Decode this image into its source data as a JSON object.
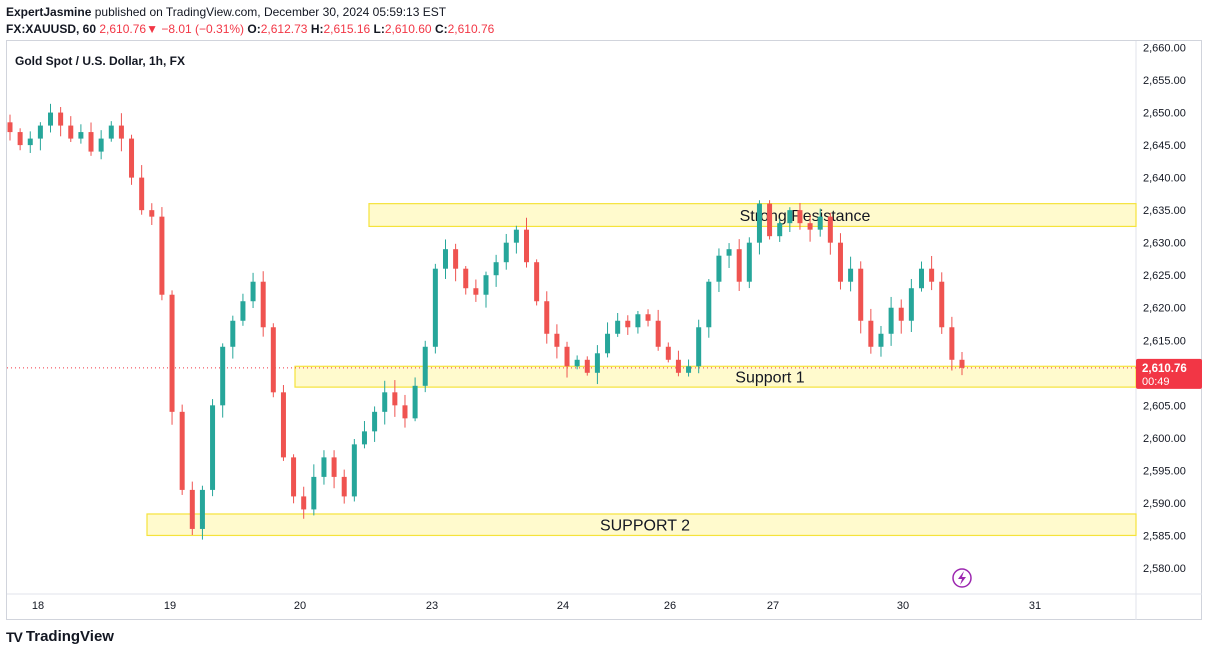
{
  "header": {
    "author": "ExpertJasmine",
    "published_text": "published on TradingView.com, December 30, 2024 05:59:13 EST",
    "symbol": "FX:XAUUSD, 60",
    "last": "2,610.76",
    "change": "−8.01 (−0.31%)",
    "o_label": "O:",
    "o": "2,612.73",
    "h_label": "H:",
    "h": "2,615.16",
    "l_label": "L:",
    "l": "2,610.60",
    "c_label": "C:",
    "c": "2,610.76"
  },
  "footer": {
    "brand": "TradingView"
  },
  "colors": {
    "up": "#26a69a",
    "down": "#ef5350",
    "zone_fill": "#fff9c4",
    "zone_border": "#f5e33b",
    "price_tag": "#f23645"
  },
  "chart_data": {
    "type": "candlestick",
    "title": "Gold Spot / U.S. Dollar, 1h, FX",
    "ylim": [
      2576,
      2661
    ],
    "y_ticks": [
      "2,580.00",
      "2,585.00",
      "2,590.00",
      "2,595.00",
      "2,600.00",
      "2,605.00",
      "2,610.00",
      "2,615.00",
      "2,620.00",
      "2,625.00",
      "2,630.00",
      "2,635.00",
      "2,640.00",
      "2,645.00",
      "2,650.00",
      "2,655.00",
      "2,660.00"
    ],
    "y_tick_values": [
      2580,
      2585,
      2590,
      2595,
      2600,
      2605,
      2610,
      2615,
      2620,
      2625,
      2630,
      2635,
      2640,
      2645,
      2650,
      2655,
      2660
    ],
    "x_ticks": [
      "18",
      "19",
      "20",
      "23",
      "24",
      "26",
      "27",
      "30",
      "31"
    ],
    "last_price": {
      "value": 2610.76,
      "label": "2,610.76",
      "countdown": "00:49"
    },
    "zones": [
      {
        "label": "Strong Resistance",
        "low": 2632.5,
        "high": 2636.0
      },
      {
        "label": "Support 1",
        "low": 2607.8,
        "high": 2611.0
      },
      {
        "label": "SUPPORT 2",
        "low": 2585.0,
        "high": 2588.3
      }
    ],
    "close_path": [
      2647,
      2645,
      2646,
      2648,
      2650,
      2648,
      2646,
      2647,
      2644,
      2646,
      2648,
      2646,
      2640,
      2635,
      2634,
      2622,
      2604,
      2592,
      2586,
      2592,
      2605,
      2614,
      2618,
      2621,
      2624,
      2617,
      2607,
      2597,
      2591,
      2589,
      2594,
      2597,
      2594,
      2591,
      2599,
      2601,
      2604,
      2607,
      2605,
      2603,
      2608,
      2614,
      2626,
      2629,
      2626,
      2623,
      2622,
      2625,
      2627,
      2630,
      2632,
      2627,
      2621,
      2616,
      2614,
      2611,
      2612,
      2610,
      2613,
      2616,
      2618,
      2617,
      2619,
      2618,
      2614,
      2612,
      2610,
      2611,
      2617,
      2624,
      2628,
      2629,
      2624,
      2630,
      2636,
      2631,
      2633,
      2635,
      2633,
      2632,
      2634,
      2630,
      2624,
      2626,
      2618,
      2614,
      2616,
      2620,
      2618,
      2623,
      2626,
      2624,
      2617,
      2612,
      2610.76
    ]
  }
}
